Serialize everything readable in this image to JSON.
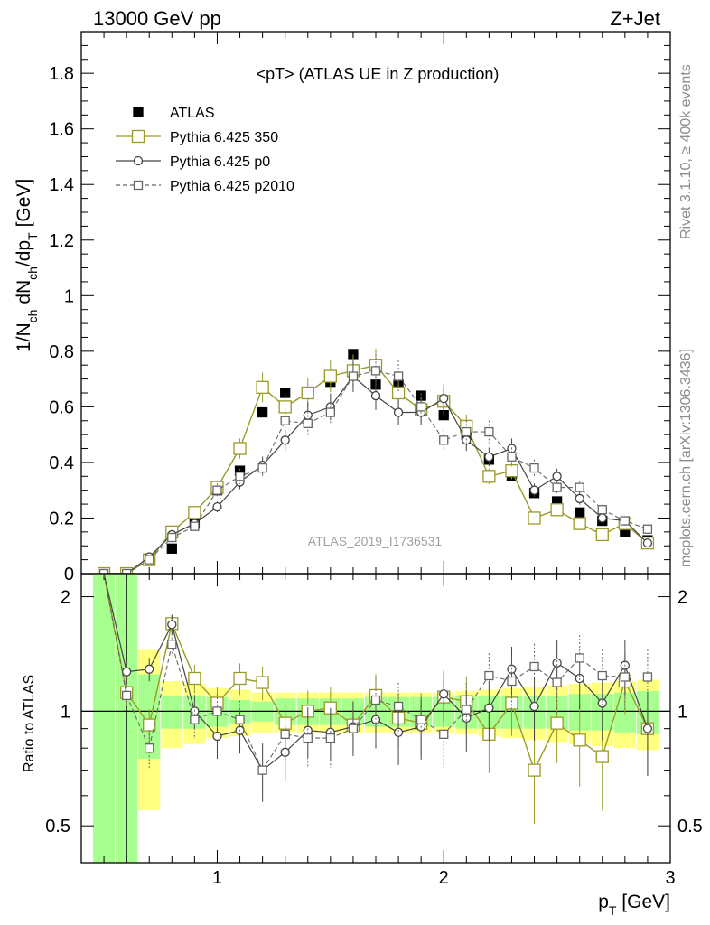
{
  "header": {
    "left": "13000 GeV pp",
    "right": "Z+Jet"
  },
  "side_labels": {
    "rivet": "Rivet 3.1.10, ≥ 400k events",
    "mcplots": "mcplots.cern.ch [arXiv:1306.3436]"
  },
  "chart_data": {
    "type": "line",
    "title": "<pT> (ATLAS UE in Z production)",
    "watermark": "ATLAS_2019_I1736531",
    "x": [
      0.5,
      0.6,
      0.7,
      0.8,
      0.9,
      1.0,
      1.1,
      1.2,
      1.3,
      1.4,
      1.5,
      1.6,
      1.7,
      1.8,
      1.9,
      2.0,
      2.1,
      2.2,
      2.3,
      2.4,
      2.5,
      2.6,
      2.7,
      2.8,
      2.9
    ],
    "xlim": [
      0.4,
      3.0
    ],
    "xticks": [
      1,
      2,
      3
    ],
    "xlabel": "p_T [GeV]",
    "top_panel": {
      "ylabel": "1/N_ch dN_ch/dp_T [GeV]",
      "ylim": [
        0,
        1.95
      ],
      "yticks": [
        "0",
        "0.2",
        "0.4",
        "0.6",
        "0.8",
        "1",
        "1.2",
        "1.4",
        "1.6",
        "1.8"
      ]
    },
    "ratio_panel": {
      "ylabel": "Ratio to ATLAS",
      "ylim": [
        0.4,
        2.3
      ],
      "yticks": [
        "0.5",
        "1",
        "2"
      ]
    },
    "legend": [
      {
        "label": "ATLAS",
        "color": "#000000",
        "marker": "filled-square"
      },
      {
        "label": "Pythia 6.425 350",
        "color": "#9a9a26",
        "marker": "open-square"
      },
      {
        "label": "Pythia 6.425 p0",
        "color": "#444444",
        "marker": "open-circle"
      },
      {
        "label": "Pythia 6.425 p2010",
        "color": "#666666",
        "marker": "open-square-dashed"
      }
    ],
    "series": [
      {
        "name": "ATLAS",
        "values": [
          0.0,
          0.0,
          0.05,
          0.09,
          0.18,
          0.3,
          0.37,
          0.58,
          0.65,
          0.65,
          0.69,
          0.79,
          0.68,
          0.68,
          0.64,
          0.57,
          0.5,
          0.41,
          0.35,
          0.29,
          0.26,
          0.22,
          0.19,
          0.15,
          0.12
        ]
      },
      {
        "name": "Pythia 6.425 350",
        "values": [
          0.0,
          0.0,
          0.05,
          0.15,
          0.22,
          0.31,
          0.45,
          0.67,
          0.6,
          0.65,
          0.71,
          0.73,
          0.75,
          0.65,
          0.59,
          0.62,
          0.53,
          0.35,
          0.37,
          0.2,
          0.23,
          0.18,
          0.14,
          0.18,
          0.11
        ]
      },
      {
        "name": "Pythia 6.425 p0",
        "values": [
          0.0,
          0.0,
          0.06,
          0.14,
          0.18,
          0.24,
          0.33,
          0.39,
          0.48,
          0.57,
          0.6,
          0.71,
          0.64,
          0.58,
          0.58,
          0.63,
          0.48,
          0.42,
          0.45,
          0.3,
          0.35,
          0.27,
          0.2,
          0.19,
          0.11
        ]
      },
      {
        "name": "Pythia 6.425 p2010",
        "values": [
          0.0,
          0.0,
          0.05,
          0.13,
          0.17,
          0.3,
          0.35,
          0.38,
          0.55,
          0.54,
          0.58,
          0.71,
          0.73,
          0.71,
          0.6,
          0.48,
          0.51,
          0.51,
          0.42,
          0.38,
          0.31,
          0.31,
          0.23,
          0.19,
          0.16
        ]
      }
    ],
    "ratios": [
      {
        "name": "Pythia 6.425 350",
        "values": [
          null,
          1.12,
          0.92,
          1.7,
          1.22,
          1.05,
          1.22,
          1.19,
          0.93,
          1.0,
          1.02,
          0.92,
          1.1,
          0.96,
          0.93,
          1.09,
          1.06,
          0.87,
          1.05,
          0.7,
          0.93,
          0.84,
          0.76,
          1.2,
          0.9
        ]
      },
      {
        "name": "Pythia 6.425 p0",
        "values": [
          null,
          1.27,
          1.29,
          1.69,
          1.0,
          0.86,
          0.89,
          0.7,
          0.78,
          0.89,
          0.88,
          0.91,
          0.95,
          0.88,
          0.91,
          1.11,
          0.96,
          1.02,
          1.29,
          1.03,
          1.34,
          1.22,
          1.05,
          1.32,
          0.9
        ]
      },
      {
        "name": "Pythia 6.425 p2010",
        "values": [
          null,
          1.1,
          0.8,
          1.5,
          0.95,
          1.0,
          0.95,
          0.7,
          0.87,
          0.85,
          0.85,
          0.9,
          1.07,
          1.03,
          0.95,
          0.87,
          1.01,
          1.24,
          1.2,
          1.31,
          1.19,
          1.38,
          1.24,
          1.23,
          1.23
        ]
      }
    ],
    "uncertainty_band": {
      "inner_color": "#a6ff8f",
      "outer_color": "#ffff80",
      "inner_half_width": [
        1.5,
        1.3,
        0.25,
        0.1,
        0.1,
        0.09,
        0.07,
        0.06,
        0.08,
        0.08,
        0.08,
        0.08,
        0.09,
        0.09,
        0.09,
        0.09,
        0.1,
        0.1,
        0.1,
        0.1,
        0.1,
        0.11,
        0.11,
        0.12,
        0.13
      ],
      "outer_half_width": [
        1.6,
        1.45,
        0.45,
        0.2,
        0.18,
        0.15,
        0.14,
        0.12,
        0.12,
        0.12,
        0.12,
        0.12,
        0.12,
        0.12,
        0.12,
        0.12,
        0.13,
        0.14,
        0.15,
        0.16,
        0.17,
        0.18,
        0.19,
        0.2,
        0.21
      ]
    }
  }
}
